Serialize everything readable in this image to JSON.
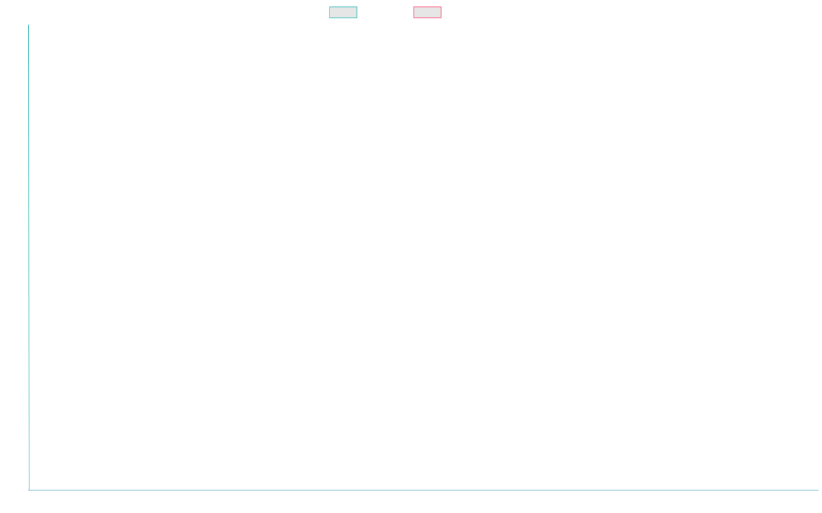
{
  "chart_data": {
    "type": "line",
    "series": [
      {
        "color": "#4bc0c0",
        "values": []
      },
      {
        "color": "#ff6384",
        "values": []
      }
    ],
    "legend": "top"
  }
}
